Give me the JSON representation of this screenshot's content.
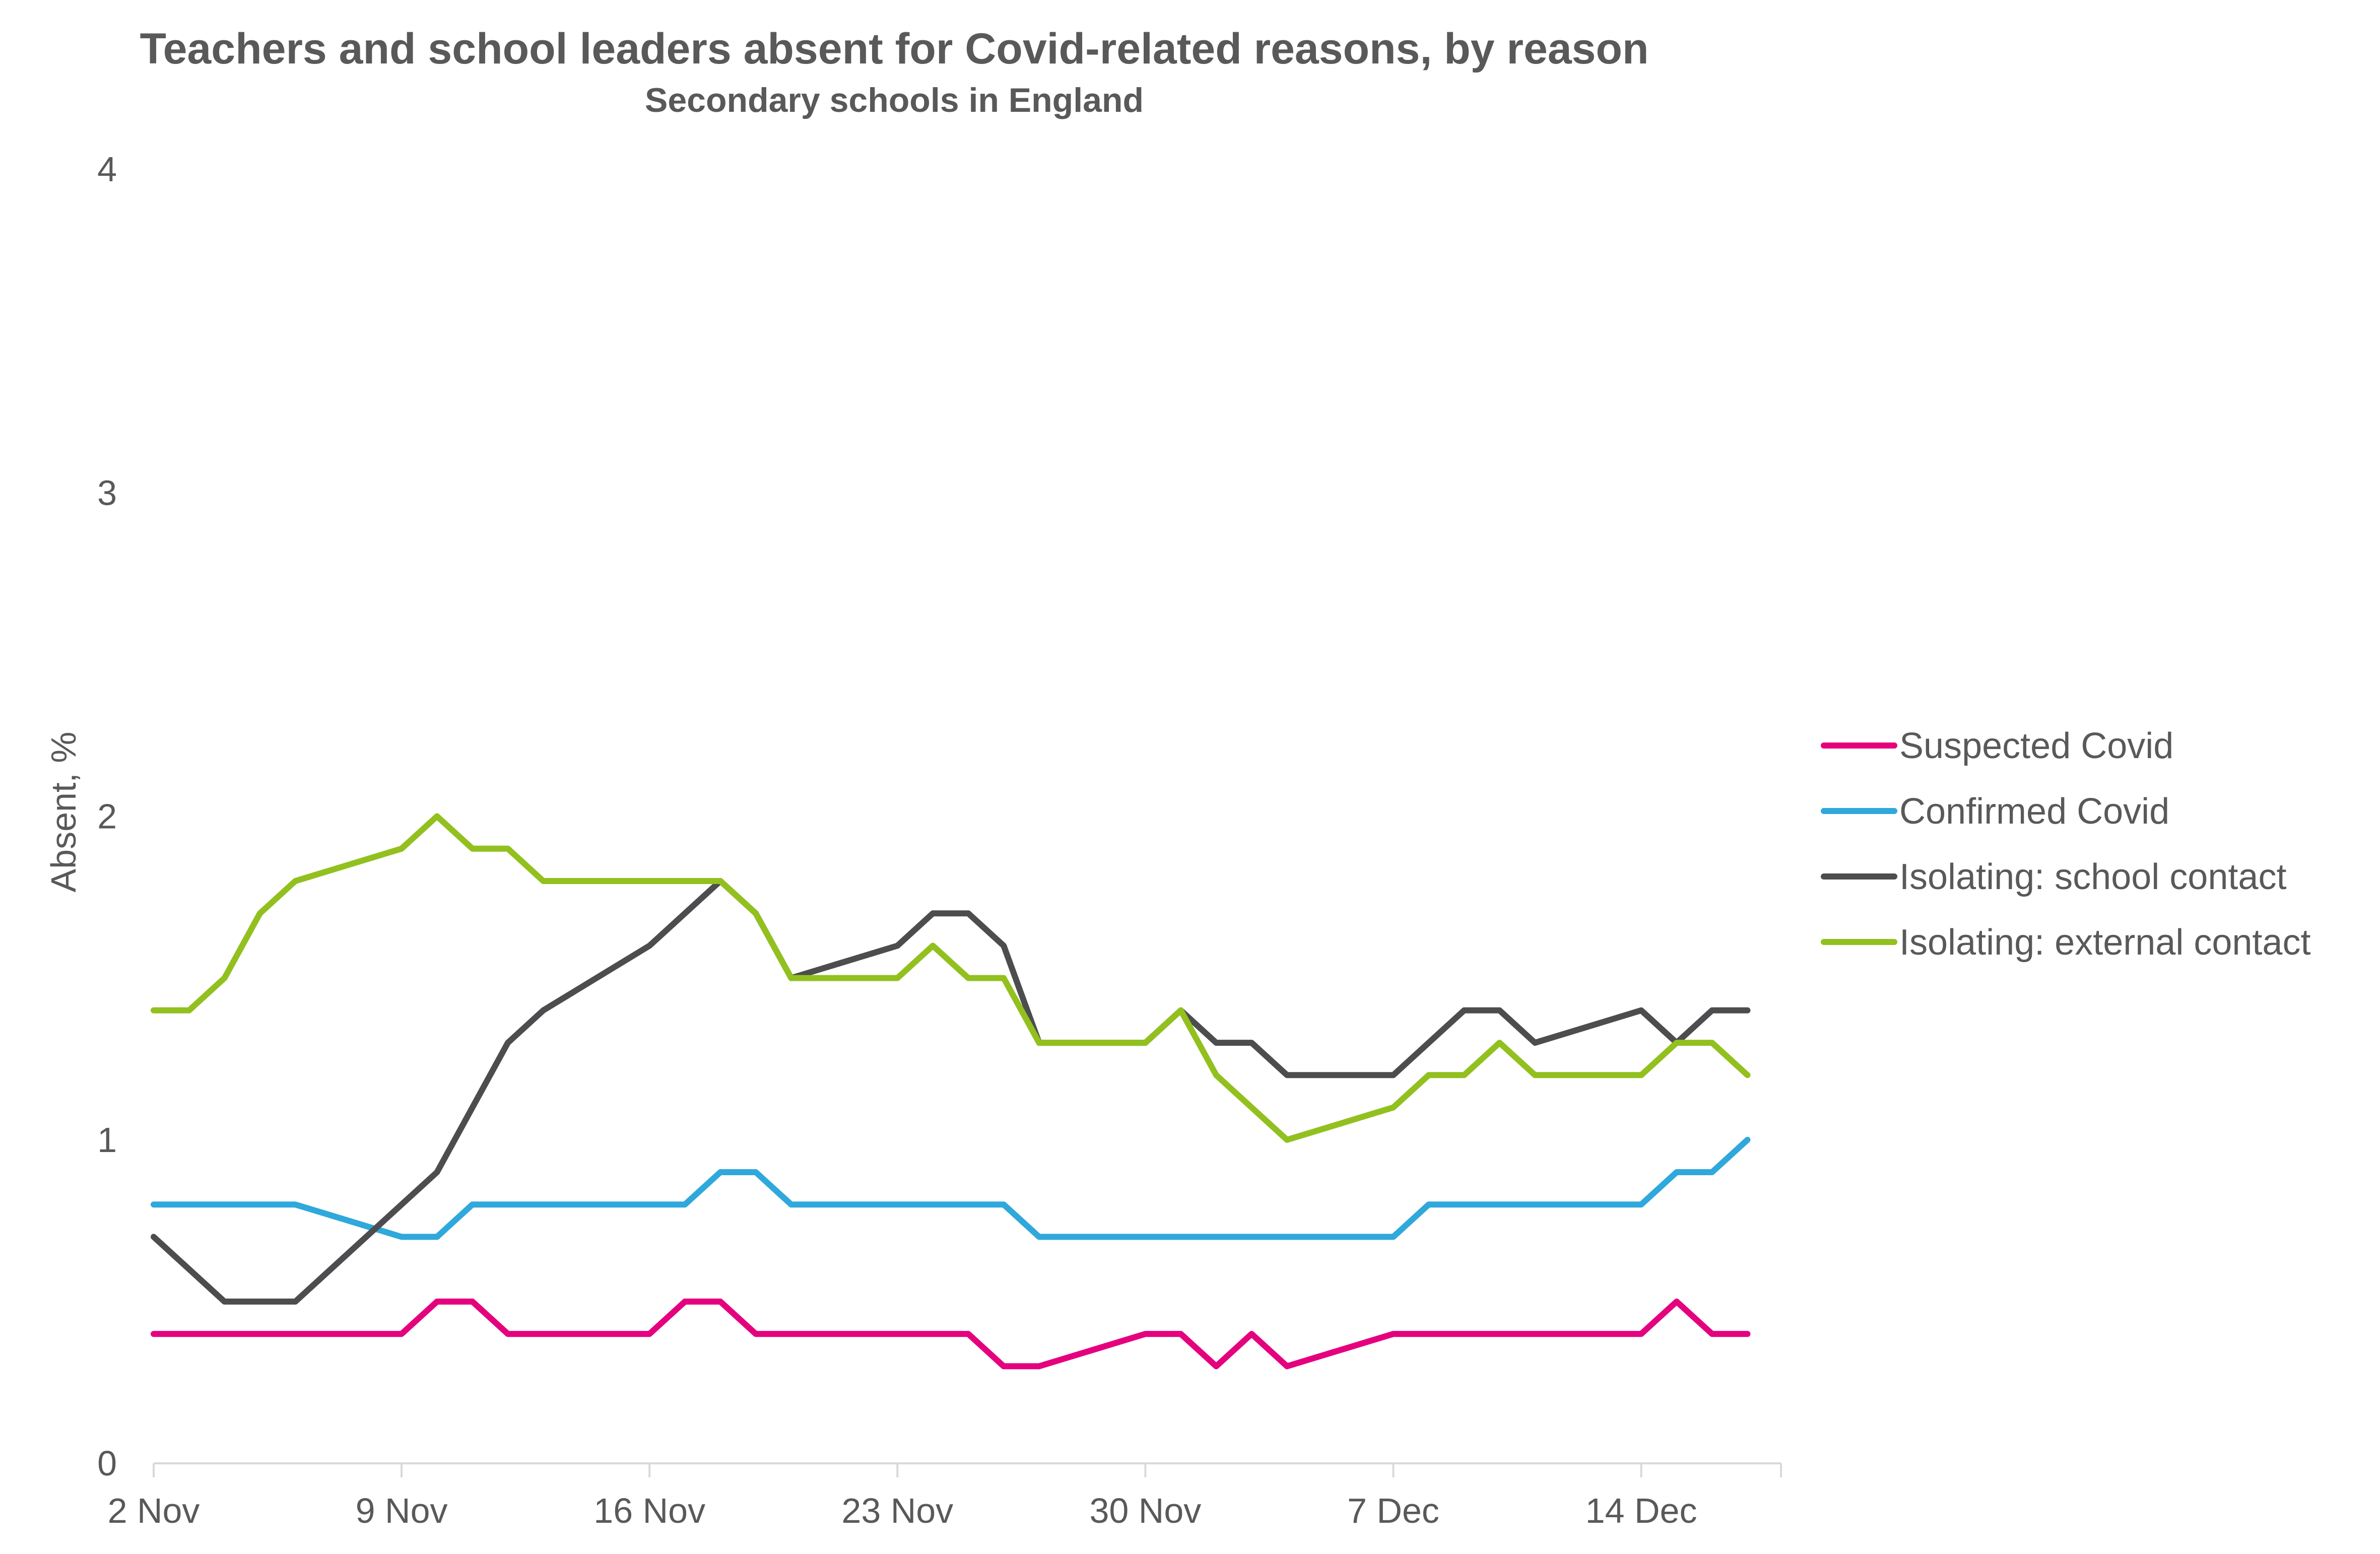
{
  "chart_data": {
    "type": "line",
    "title": "Teachers and school leaders absent for Covid-related reasons, by reason",
    "subtitle": "Secondary schools in England",
    "ylabel": "Absent, %",
    "xlabel": "",
    "ylim": [
      0,
      4
    ],
    "yticks": [
      "0",
      "1",
      "2",
      "3",
      "4"
    ],
    "x_tick_labels": [
      "2 Nov",
      "9 Nov",
      "16 Nov",
      "23 Nov",
      "30 Nov",
      "7 Dec",
      "14 Dec"
    ],
    "x_tick_dates": [
      "2020-11-02",
      "2020-11-09",
      "2020-11-16",
      "2020-11-23",
      "2020-11-30",
      "2020-12-07",
      "2020-12-14"
    ],
    "grid": false,
    "legend_position": "right",
    "series": [
      {
        "name": "Suspected Covid",
        "color": "#E5007E",
        "points": [
          [
            "2020-11-02",
            0.4
          ],
          [
            "2020-11-03",
            0.4
          ],
          [
            "2020-11-04",
            0.4
          ],
          [
            "2020-11-05",
            0.4
          ],
          [
            "2020-11-06",
            0.4
          ],
          [
            "2020-11-09",
            0.4
          ],
          [
            "2020-11-10",
            0.5
          ],
          [
            "2020-11-11",
            0.5
          ],
          [
            "2020-11-12",
            0.4
          ],
          [
            "2020-11-13",
            0.4
          ],
          [
            "2020-11-16",
            0.4
          ],
          [
            "2020-11-17",
            0.5
          ],
          [
            "2020-11-18",
            0.5
          ],
          [
            "2020-11-19",
            0.4
          ],
          [
            "2020-11-20",
            0.4
          ],
          [
            "2020-11-23",
            0.4
          ],
          [
            "2020-11-24",
            0.4
          ],
          [
            "2020-11-25",
            0.4
          ],
          [
            "2020-11-26",
            0.3
          ],
          [
            "2020-11-27",
            0.3
          ],
          [
            "2020-11-30",
            0.4
          ],
          [
            "2020-12-01",
            0.4
          ],
          [
            "2020-12-02",
            0.3
          ],
          [
            "2020-12-03",
            0.4
          ],
          [
            "2020-12-04",
            0.3
          ],
          [
            "2020-12-07",
            0.4
          ],
          [
            "2020-12-08",
            0.4
          ],
          [
            "2020-12-09",
            0.4
          ],
          [
            "2020-12-10",
            0.4
          ],
          [
            "2020-12-11",
            0.4
          ],
          [
            "2020-12-14",
            0.4
          ],
          [
            "2020-12-15",
            0.5
          ],
          [
            "2020-12-16",
            0.4
          ],
          [
            "2020-12-17",
            0.4
          ]
        ]
      },
      {
        "name": "Confirmed Covid",
        "color": "#2FA8DC",
        "points": [
          [
            "2020-11-02",
            0.8
          ],
          [
            "2020-11-03",
            0.8
          ],
          [
            "2020-11-04",
            0.8
          ],
          [
            "2020-11-05",
            0.8
          ],
          [
            "2020-11-06",
            0.8
          ],
          [
            "2020-11-09",
            0.7
          ],
          [
            "2020-11-10",
            0.7
          ],
          [
            "2020-11-11",
            0.8
          ],
          [
            "2020-11-12",
            0.8
          ],
          [
            "2020-11-13",
            0.8
          ],
          [
            "2020-11-16",
            0.8
          ],
          [
            "2020-11-17",
            0.8
          ],
          [
            "2020-11-18",
            0.9
          ],
          [
            "2020-11-19",
            0.9
          ],
          [
            "2020-11-20",
            0.8
          ],
          [
            "2020-11-23",
            0.8
          ],
          [
            "2020-11-24",
            0.8
          ],
          [
            "2020-11-25",
            0.8
          ],
          [
            "2020-11-26",
            0.8
          ],
          [
            "2020-11-27",
            0.7
          ],
          [
            "2020-11-30",
            0.7
          ],
          [
            "2020-12-01",
            0.7
          ],
          [
            "2020-12-02",
            0.7
          ],
          [
            "2020-12-03",
            0.7
          ],
          [
            "2020-12-04",
            0.7
          ],
          [
            "2020-12-07",
            0.7
          ],
          [
            "2020-12-08",
            0.8
          ],
          [
            "2020-12-09",
            0.8
          ],
          [
            "2020-12-10",
            0.8
          ],
          [
            "2020-12-11",
            0.8
          ],
          [
            "2020-12-14",
            0.8
          ],
          [
            "2020-12-15",
            0.9
          ],
          [
            "2020-12-16",
            0.9
          ],
          [
            "2020-12-17",
            1.0
          ]
        ]
      },
      {
        "name": "Isolating: school contact",
        "color": "#4D4D4F",
        "points": [
          [
            "2020-11-02",
            0.7
          ],
          [
            "2020-11-04",
            0.5
          ],
          [
            "2020-11-06",
            0.5
          ],
          [
            "2020-11-09",
            0.8
          ],
          [
            "2020-11-10",
            0.9
          ],
          [
            "2020-11-11",
            1.1
          ],
          [
            "2020-11-12",
            1.3
          ],
          [
            "2020-11-13",
            1.4
          ],
          [
            "2020-11-16",
            1.6
          ],
          [
            "2020-11-18",
            1.8
          ],
          [
            "2020-11-19",
            1.7
          ],
          [
            "2020-11-20",
            1.5
          ],
          [
            "2020-11-23",
            1.6
          ],
          [
            "2020-11-24",
            1.7
          ],
          [
            "2020-11-25",
            1.7
          ],
          [
            "2020-11-26",
            1.6
          ],
          [
            "2020-11-27",
            1.3
          ],
          [
            "2020-11-30",
            1.3
          ],
          [
            "2020-12-01",
            1.4
          ],
          [
            "2020-12-02",
            1.3
          ],
          [
            "2020-12-03",
            1.3
          ],
          [
            "2020-12-04",
            1.2
          ],
          [
            "2020-12-07",
            1.2
          ],
          [
            "2020-12-09",
            1.4
          ],
          [
            "2020-12-10",
            1.4
          ],
          [
            "2020-12-11",
            1.3
          ],
          [
            "2020-12-14",
            1.4
          ],
          [
            "2020-12-15",
            1.3
          ],
          [
            "2020-12-16",
            1.4
          ],
          [
            "2020-12-17",
            1.4
          ]
        ]
      },
      {
        "name": "Isolating: external contact",
        "color": "#92C01F",
        "points": [
          [
            "2020-11-02",
            1.4
          ],
          [
            "2020-11-03",
            1.4
          ],
          [
            "2020-11-04",
            1.5
          ],
          [
            "2020-11-05",
            1.7
          ],
          [
            "2020-11-06",
            1.8
          ],
          [
            "2020-11-09",
            1.9
          ],
          [
            "2020-11-10",
            2.0
          ],
          [
            "2020-11-11",
            1.9
          ],
          [
            "2020-11-12",
            1.9
          ],
          [
            "2020-11-13",
            1.8
          ],
          [
            "2020-11-16",
            1.8
          ],
          [
            "2020-11-18",
            1.8
          ],
          [
            "2020-11-19",
            1.7
          ],
          [
            "2020-11-20",
            1.5
          ],
          [
            "2020-11-23",
            1.5
          ],
          [
            "2020-11-24",
            1.6
          ],
          [
            "2020-11-25",
            1.5
          ],
          [
            "2020-11-26",
            1.5
          ],
          [
            "2020-11-27",
            1.3
          ],
          [
            "2020-11-30",
            1.3
          ],
          [
            "2020-12-01",
            1.4
          ],
          [
            "2020-12-02",
            1.2
          ],
          [
            "2020-12-04",
            1.0
          ],
          [
            "2020-12-07",
            1.1
          ],
          [
            "2020-12-08",
            1.2
          ],
          [
            "2020-12-09",
            1.2
          ],
          [
            "2020-12-10",
            1.3
          ],
          [
            "2020-12-11",
            1.2
          ],
          [
            "2020-12-14",
            1.2
          ],
          [
            "2020-12-15",
            1.3
          ],
          [
            "2020-12-16",
            1.3
          ],
          [
            "2020-12-17",
            1.2
          ]
        ]
      }
    ]
  }
}
